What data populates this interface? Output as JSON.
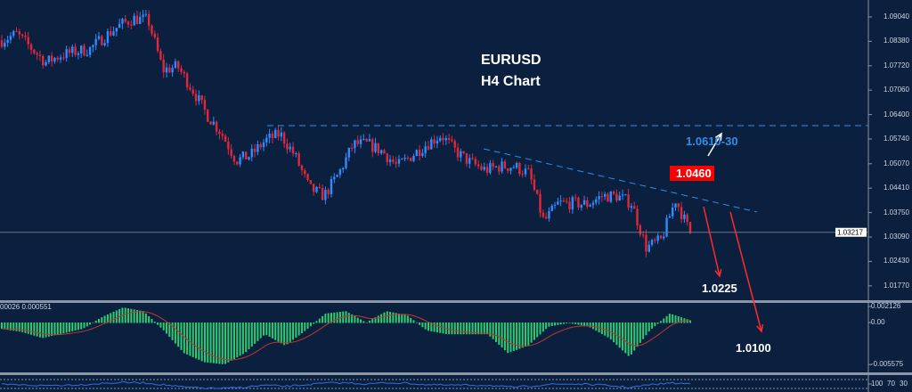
{
  "chart_data": {
    "type": "candlestick",
    "title": "EURUSD",
    "subtitle": "H4 Chart",
    "symbol": "EURUSD",
    "timeframe": "H4",
    "price_axis_ticks": [
      "1.09040",
      "1.08380",
      "1.07720",
      "1.07060",
      "1.06400",
      "1.05740",
      "1.05070",
      "1.04410",
      "1.03750",
      "1.03090",
      "1.02430",
      "1.01770"
    ],
    "ylim": [
      1.013,
      1.095
    ],
    "current_price": "1.03217",
    "close_path": [
      1.0841,
      1.0858,
      1.082,
      1.0781,
      1.08,
      1.081,
      1.0817,
      1.085,
      1.088,
      1.09,
      1.0895,
      1.076,
      1.077,
      1.0709,
      1.064,
      1.059,
      1.0516,
      1.053,
      1.057,
      1.0588,
      1.053,
      1.044,
      1.042,
      1.048,
      1.056,
      1.056,
      1.054,
      1.05,
      1.053,
      1.056,
      1.0585,
      1.054,
      1.051,
      1.049,
      1.05,
      1.05,
      1.048,
      1.035,
      1.04,
      1.04,
      1.0398,
      1.042,
      1.042,
      1.04,
      1.028,
      1.03,
      1.041,
      1.032
    ],
    "annotations": {
      "resistance_label": "1.0610-30",
      "resistance_level": 1.061,
      "pivot_label": "1.0460",
      "target1_label": "1.0225",
      "target2_label": "1.0100"
    },
    "macd": {
      "label": "00026 0.000551",
      "axis_ticks": [
        "0.002126",
        "0.00",
        "-0.005575"
      ],
      "ylim": [
        -0.0058,
        0.0024
      ],
      "histogram_path": [
        -0.0008,
        -0.0012,
        -0.002,
        -0.0014,
        -0.0008,
        0.0008,
        0.002,
        0.0015,
        -0.001,
        -0.004,
        -0.0052,
        -0.0055,
        -0.004,
        -0.0015,
        -0.003,
        -0.001,
        0.0012,
        0.0015,
        0.0,
        0.0015,
        0.001,
        -0.001,
        -0.0015,
        -0.0015,
        -0.0015,
        -0.004,
        -0.003,
        -0.0005,
        0.0,
        -0.0005,
        -0.002,
        -0.0045,
        -0.001,
        0.0012,
        0.0003
      ]
    },
    "rsi": {
      "axis_ticks": [
        "100",
        "70",
        "30"
      ]
    },
    "colors": {
      "background": "#0b1f3f",
      "bull": "#2f8bff",
      "bear": "#e0283a",
      "histogram": "#2ecc71",
      "signal": "#c0392b",
      "annotation_blue": "#2f8fe8",
      "arrow_red": "#ff2a2a"
    }
  }
}
